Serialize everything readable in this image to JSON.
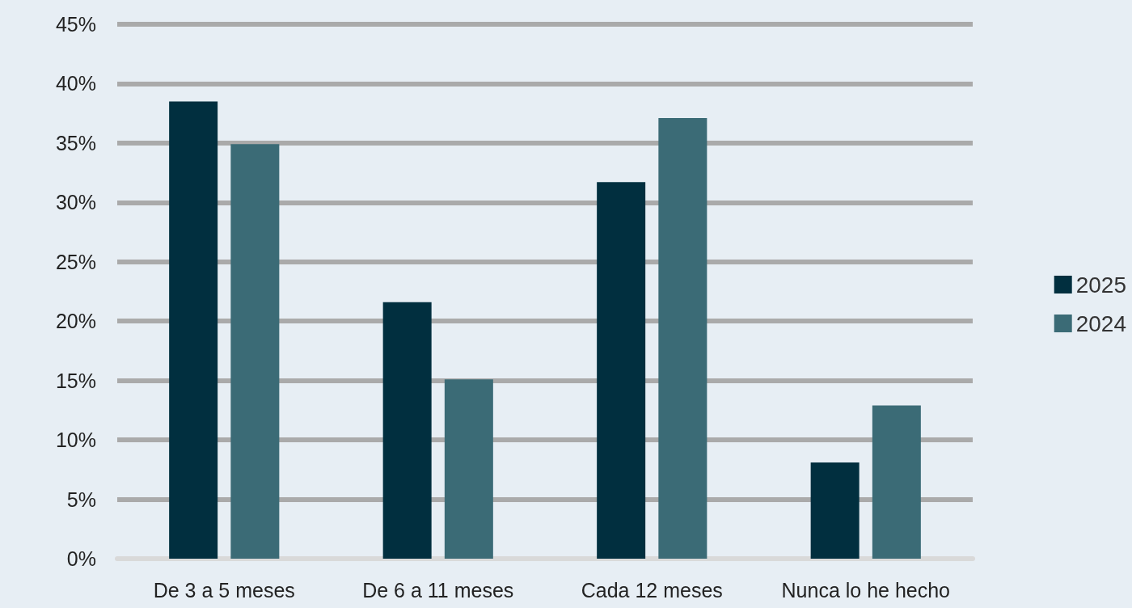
{
  "chart_data": {
    "type": "bar",
    "categories": [
      "De 3 a 5 meses",
      "De 6 a 11 meses",
      "Cada 12 meses",
      "Nunca lo he hecho"
    ],
    "series": [
      {
        "name": "2025",
        "color": "#012f3f",
        "values": [
          38.5,
          21.6,
          31.7,
          8.1
        ]
      },
      {
        "name": "2024",
        "color": "#3b6b76",
        "values": [
          34.9,
          15.1,
          37.1,
          12.9
        ]
      }
    ],
    "ylim": [
      0,
      45
    ],
    "yticks": [
      {
        "value": 0,
        "label": "0%"
      },
      {
        "value": 5,
        "label": "5%"
      },
      {
        "value": 10,
        "label": "10%"
      },
      {
        "value": 15,
        "label": "15%"
      },
      {
        "value": 20,
        "label": "20%"
      },
      {
        "value": 25,
        "label": "25%"
      },
      {
        "value": 30,
        "label": "30%"
      },
      {
        "value": 35,
        "label": "35%"
      },
      {
        "value": 40,
        "label": "40%"
      },
      {
        "value": 45,
        "label": "45%"
      }
    ],
    "grid": "y",
    "legend": "right"
  }
}
